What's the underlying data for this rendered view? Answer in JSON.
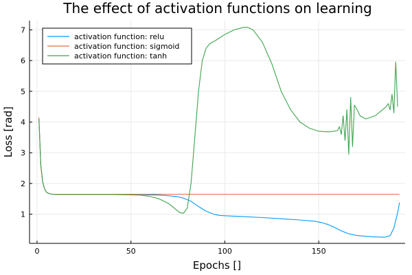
{
  "chart_data": {
    "type": "line",
    "title": "The effect of activation functions on learning",
    "xlabel": "Epochs []",
    "ylabel": "Loss [rad]",
    "xlim": [
      -4,
      196
    ],
    "ylim": [
      0.05,
      7.3
    ],
    "xticks": [
      0,
      50,
      100,
      150
    ],
    "yticks": [
      1,
      2,
      3,
      4,
      5,
      6,
      7
    ],
    "grid": true,
    "legend_position": "top-left",
    "series": [
      {
        "name": "activation function: relu",
        "color": "#009af9",
        "x": [
          1,
          2,
          3,
          4,
          5,
          6,
          8,
          10,
          15,
          20,
          30,
          40,
          50,
          55,
          60,
          65,
          70,
          75,
          78,
          82,
          86,
          90,
          94,
          97,
          100,
          110,
          120,
          130,
          140,
          148,
          152,
          155,
          158,
          162,
          166,
          170,
          175,
          180,
          185,
          188,
          190,
          191,
          192,
          193
        ],
        "y": [
          4.1,
          2.6,
          2.05,
          1.82,
          1.72,
          1.68,
          1.65,
          1.64,
          1.64,
          1.64,
          1.64,
          1.64,
          1.64,
          1.64,
          1.63,
          1.62,
          1.6,
          1.57,
          1.52,
          1.42,
          1.25,
          1.1,
          1.0,
          0.96,
          0.95,
          0.92,
          0.89,
          0.85,
          0.81,
          0.77,
          0.72,
          0.66,
          0.58,
          0.46,
          0.36,
          0.31,
          0.28,
          0.26,
          0.25,
          0.3,
          0.55,
          0.8,
          1.05,
          1.38
        ]
      },
      {
        "name": "activation function: sigmoid",
        "color": "#e26f46",
        "x": [
          1,
          2,
          3,
          4,
          5,
          6,
          8,
          10,
          15,
          20,
          193
        ],
        "y": [
          4.15,
          2.6,
          2.05,
          1.82,
          1.72,
          1.68,
          1.65,
          1.65,
          1.65,
          1.65,
          1.65
        ]
      },
      {
        "name": "activation function: tanh",
        "color": "#3da44d",
        "x": [
          1,
          2,
          3,
          4,
          5,
          6,
          8,
          10,
          15,
          20,
          30,
          40,
          50,
          55,
          60,
          65,
          70,
          73,
          76,
          78,
          80,
          82,
          84,
          86,
          88,
          90,
          92,
          95,
          100,
          105,
          110,
          112,
          115,
          120,
          125,
          130,
          135,
          140,
          145,
          150,
          155,
          158,
          160,
          161,
          162,
          163,
          164,
          165,
          166,
          167,
          168,
          169,
          170,
          172,
          175,
          180,
          184,
          186,
          187,
          188,
          189,
          190,
          191,
          192
        ],
        "y": [
          4.1,
          2.6,
          2.05,
          1.82,
          1.72,
          1.68,
          1.65,
          1.64,
          1.64,
          1.64,
          1.64,
          1.64,
          1.63,
          1.62,
          1.58,
          1.5,
          1.35,
          1.2,
          1.05,
          1.03,
          1.2,
          2.0,
          3.5,
          5.0,
          6.0,
          6.4,
          6.55,
          6.65,
          6.85,
          7.0,
          7.08,
          7.08,
          7.0,
          6.6,
          5.9,
          5.0,
          4.4,
          4.0,
          3.8,
          3.7,
          3.68,
          3.7,
          3.72,
          3.85,
          3.6,
          4.2,
          3.4,
          4.4,
          2.95,
          4.8,
          3.2,
          4.55,
          4.45,
          4.2,
          4.1,
          4.2,
          4.4,
          4.5,
          4.6,
          4.4,
          4.9,
          4.3,
          5.95,
          4.5
        ]
      }
    ]
  }
}
